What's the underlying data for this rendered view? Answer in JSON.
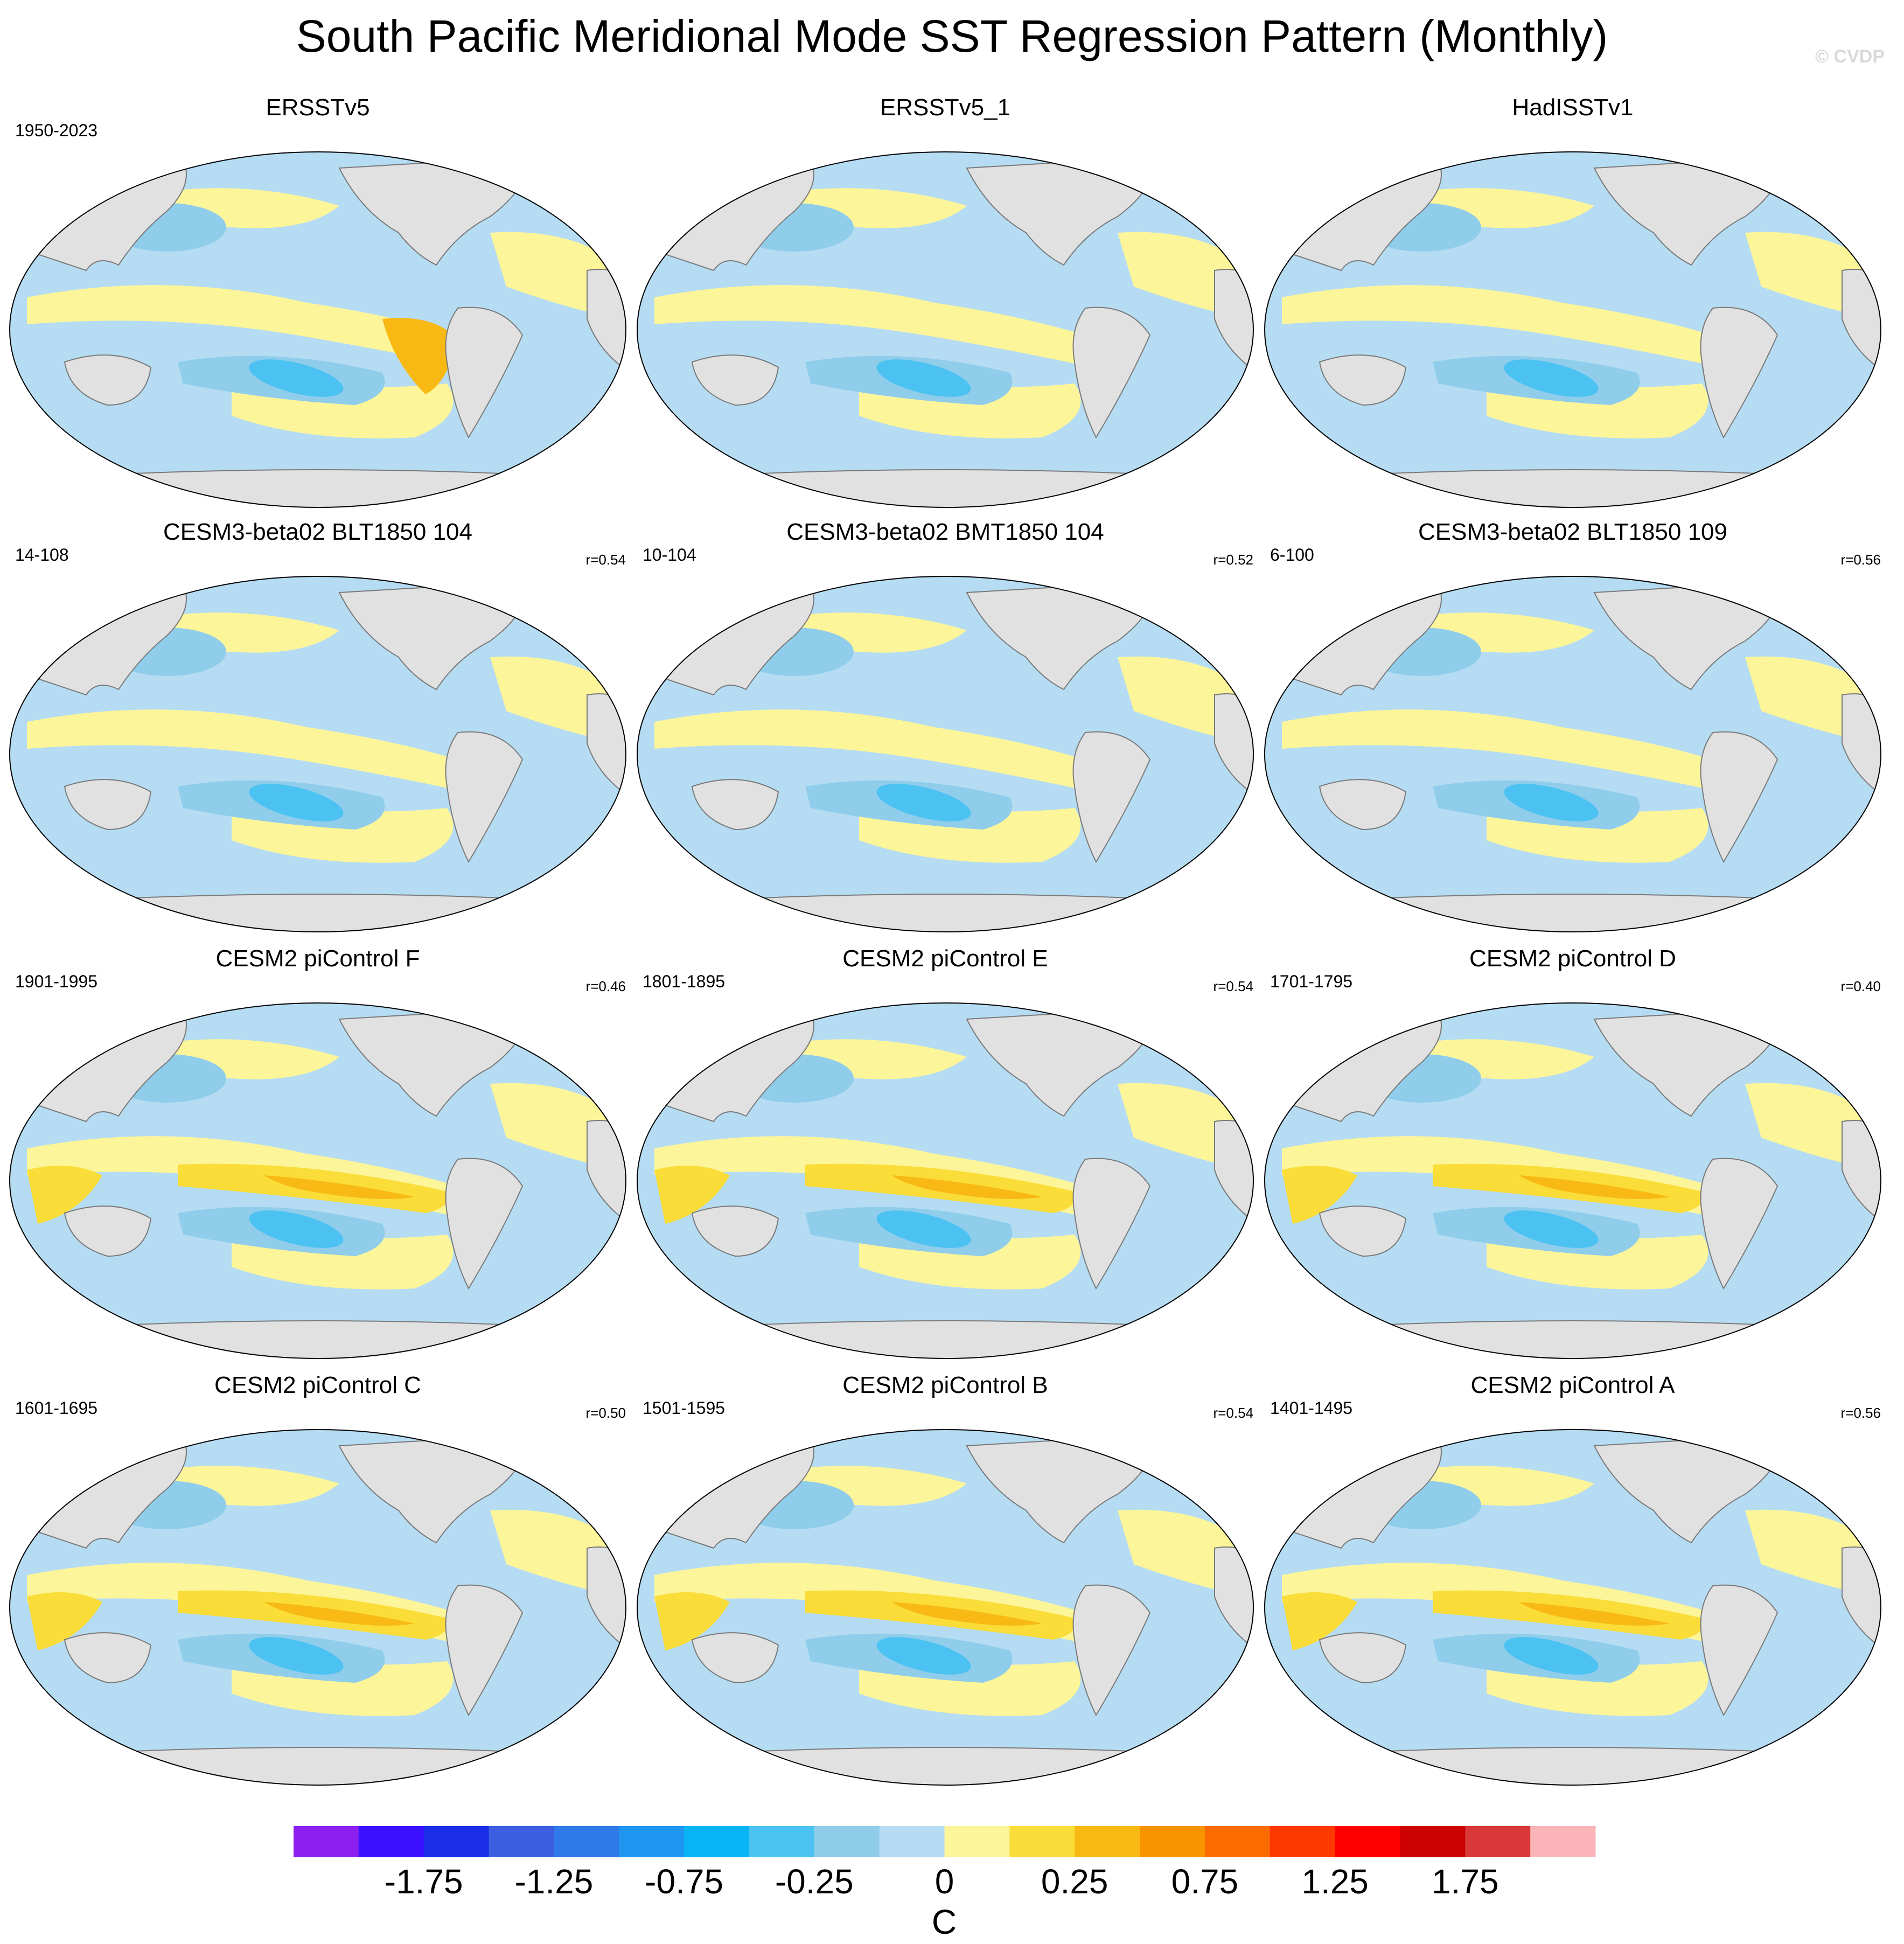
{
  "title": "South Pacific Meridional Mode SST Regression Pattern (Monthly)",
  "watermark": "© CVDP",
  "chart_data": {
    "type": "heatmap",
    "map_projection": "Robinson (Pacific-centered)",
    "variable": "SST regression",
    "units": "C",
    "colorbar": {
      "levels": [
        -2.0,
        -1.75,
        -1.5,
        -1.25,
        -1.0,
        -0.75,
        -0.5,
        -0.25,
        -0.1,
        0,
        0.1,
        0.25,
        0.5,
        0.75,
        1.0,
        1.25,
        1.5,
        1.75,
        2.0
      ],
      "tick_labels": [
        "-1.75",
        "-1.25",
        "-0.75",
        "-0.25",
        "0",
        "0.25",
        "0.75",
        "1.25",
        "1.75"
      ],
      "colors": [
        "#8a1ff0",
        "#3a10ff",
        "#1a2ee8",
        "#3c5ee0",
        "#2f7ae8",
        "#1f96f0",
        "#08b4f6",
        "#4cc2f2",
        "#8fcdeb",
        "#b5dcf2",
        "#fdf59a",
        "#fadd38",
        "#f8b914",
        "#f89400",
        "#fb6c00",
        "#ff3800",
        "#ff0000",
        "#cc0000",
        "#d83838",
        "#fbb4b8"
      ],
      "label": "C"
    },
    "panels": [
      {
        "title": "ERSSTv5",
        "years": "1950-2023",
        "r": ""
      },
      {
        "title": "ERSSTv5_1",
        "years": "",
        "r": ""
      },
      {
        "title": "HadISSTv1",
        "years": "",
        "r": ""
      },
      {
        "title": "CESM3-beta02 BLT1850 104",
        "years": "14-108",
        "r": "r=0.54"
      },
      {
        "title": "CESM3-beta02 BMT1850 104",
        "years": "10-104",
        "r": "r=0.52"
      },
      {
        "title": "CESM3-beta02 BLT1850 109",
        "years": "6-100",
        "r": "r=0.56"
      },
      {
        "title": "CESM2 piControl F",
        "years": "1901-1995",
        "r": "r=0.46"
      },
      {
        "title": "CESM2 piControl E",
        "years": "1801-1895",
        "r": "r=0.54"
      },
      {
        "title": "CESM2 piControl D",
        "years": "1701-1795",
        "r": "r=0.40"
      },
      {
        "title": "CESM2 piControl C",
        "years": "1601-1695",
        "r": "r=0.50"
      },
      {
        "title": "CESM2 piControl B",
        "years": "1501-1595",
        "r": "r=0.54"
      },
      {
        "title": "CESM2 piControl A",
        "years": "1401-1495",
        "r": "r=0.56"
      }
    ]
  }
}
